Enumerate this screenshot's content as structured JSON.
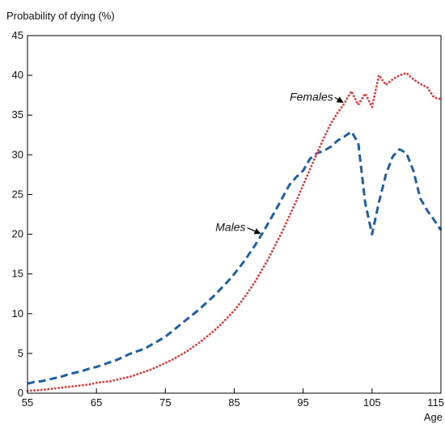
{
  "chart_data": {
    "type": "line",
    "title": "",
    "ylabel": "Probability of dying (%)",
    "xlabel": "Age",
    "xlim": [
      55,
      115
    ],
    "ylim": [
      0,
      45
    ],
    "x_ticks": [
      55,
      65,
      75,
      85,
      95,
      105,
      115
    ],
    "y_ticks": [
      0,
      5,
      10,
      15,
      20,
      25,
      30,
      35,
      40,
      45
    ],
    "grid": false,
    "legend": "none",
    "series": [
      {
        "name": "Males",
        "style": "dashed",
        "color": "#1f5fa6",
        "points": [
          [
            55,
            1.2
          ],
          [
            56,
            1.4
          ],
          [
            57,
            1.5
          ],
          [
            58,
            1.7
          ],
          [
            59,
            1.9
          ],
          [
            60,
            2.1
          ],
          [
            61,
            2.4
          ],
          [
            62,
            2.6
          ],
          [
            63,
            2.8
          ],
          [
            64,
            3.1
          ],
          [
            65,
            3.3
          ],
          [
            66,
            3.6
          ],
          [
            67,
            3.9
          ],
          [
            68,
            4.2
          ],
          [
            69,
            4.6
          ],
          [
            70,
            5.0
          ],
          [
            71,
            5.3
          ],
          [
            72,
            5.6
          ],
          [
            73,
            6.1
          ],
          [
            74,
            6.6
          ],
          [
            75,
            7.1
          ],
          [
            76,
            7.8
          ],
          [
            77,
            8.5
          ],
          [
            78,
            9.2
          ],
          [
            79,
            9.9
          ],
          [
            80,
            10.6
          ],
          [
            81,
            11.4
          ],
          [
            82,
            12.2
          ],
          [
            83,
            13.1
          ],
          [
            84,
            14.0
          ],
          [
            85,
            15.0
          ],
          [
            86,
            16.1
          ],
          [
            87,
            17.3
          ],
          [
            88,
            18.6
          ],
          [
            89,
            20.0
          ],
          [
            90,
            21.5
          ],
          [
            91,
            23.0
          ],
          [
            92,
            24.6
          ],
          [
            93,
            26.2
          ],
          [
            94,
            27.2
          ],
          [
            95,
            28.0
          ],
          [
            96,
            29.5
          ],
          [
            97,
            30.2
          ],
          [
            98,
            30.5
          ],
          [
            99,
            31.0
          ],
          [
            100,
            31.8
          ],
          [
            101,
            32.3
          ],
          [
            102,
            32.9
          ],
          [
            103,
            31.5
          ],
          [
            104,
            24.0
          ],
          [
            105,
            20.0
          ],
          [
            106,
            24.0
          ],
          [
            107,
            27.5
          ],
          [
            108,
            29.8
          ],
          [
            109,
            30.7
          ],
          [
            110,
            30.2
          ],
          [
            111,
            28.0
          ],
          [
            112,
            24.5
          ],
          [
            113,
            23.0
          ],
          [
            114,
            21.8
          ],
          [
            115,
            20.5
          ]
        ]
      },
      {
        "name": "Females",
        "style": "dotted",
        "color": "#e03a3a",
        "points": [
          [
            55,
            0.3
          ],
          [
            56,
            0.35
          ],
          [
            57,
            0.4
          ],
          [
            58,
            0.5
          ],
          [
            59,
            0.6
          ],
          [
            60,
            0.7
          ],
          [
            61,
            0.8
          ],
          [
            62,
            0.9
          ],
          [
            63,
            1.0
          ],
          [
            64,
            1.1
          ],
          [
            65,
            1.3
          ],
          [
            66,
            1.4
          ],
          [
            67,
            1.5
          ],
          [
            68,
            1.7
          ],
          [
            69,
            1.9
          ],
          [
            70,
            2.1
          ],
          [
            71,
            2.4
          ],
          [
            72,
            2.7
          ],
          [
            73,
            3.0
          ],
          [
            74,
            3.4
          ],
          [
            75,
            3.8
          ],
          [
            76,
            4.2
          ],
          [
            77,
            4.7
          ],
          [
            78,
            5.2
          ],
          [
            79,
            5.8
          ],
          [
            80,
            6.4
          ],
          [
            81,
            7.1
          ],
          [
            82,
            7.8
          ],
          [
            83,
            8.6
          ],
          [
            84,
            9.5
          ],
          [
            85,
            10.4
          ],
          [
            86,
            11.5
          ],
          [
            87,
            12.7
          ],
          [
            88,
            14.0
          ],
          [
            89,
            15.5
          ],
          [
            90,
            17.0
          ],
          [
            91,
            18.7
          ],
          [
            92,
            20.4
          ],
          [
            93,
            22.3
          ],
          [
            94,
            24.2
          ],
          [
            95,
            26.2
          ],
          [
            96,
            28.2
          ],
          [
            97,
            30.2
          ],
          [
            98,
            32.1
          ],
          [
            99,
            33.9
          ],
          [
            100,
            35.3
          ],
          [
            101,
            36.5
          ],
          [
            102,
            38.0
          ],
          [
            103,
            36.3
          ],
          [
            104,
            37.7
          ],
          [
            105,
            36.0
          ],
          [
            106,
            40.0
          ],
          [
            107,
            38.8
          ],
          [
            108,
            39.5
          ],
          [
            109,
            40.0
          ],
          [
            110,
            40.3
          ],
          [
            111,
            39.5
          ],
          [
            112,
            38.9
          ],
          [
            113,
            38.5
          ],
          [
            114,
            37.2
          ],
          [
            115,
            37.0
          ]
        ]
      }
    ],
    "annotations": [
      {
        "text": "Males",
        "series": "Males",
        "at_x": 89
      },
      {
        "text": "Females",
        "series": "Females",
        "at_x": 101
      }
    ]
  }
}
